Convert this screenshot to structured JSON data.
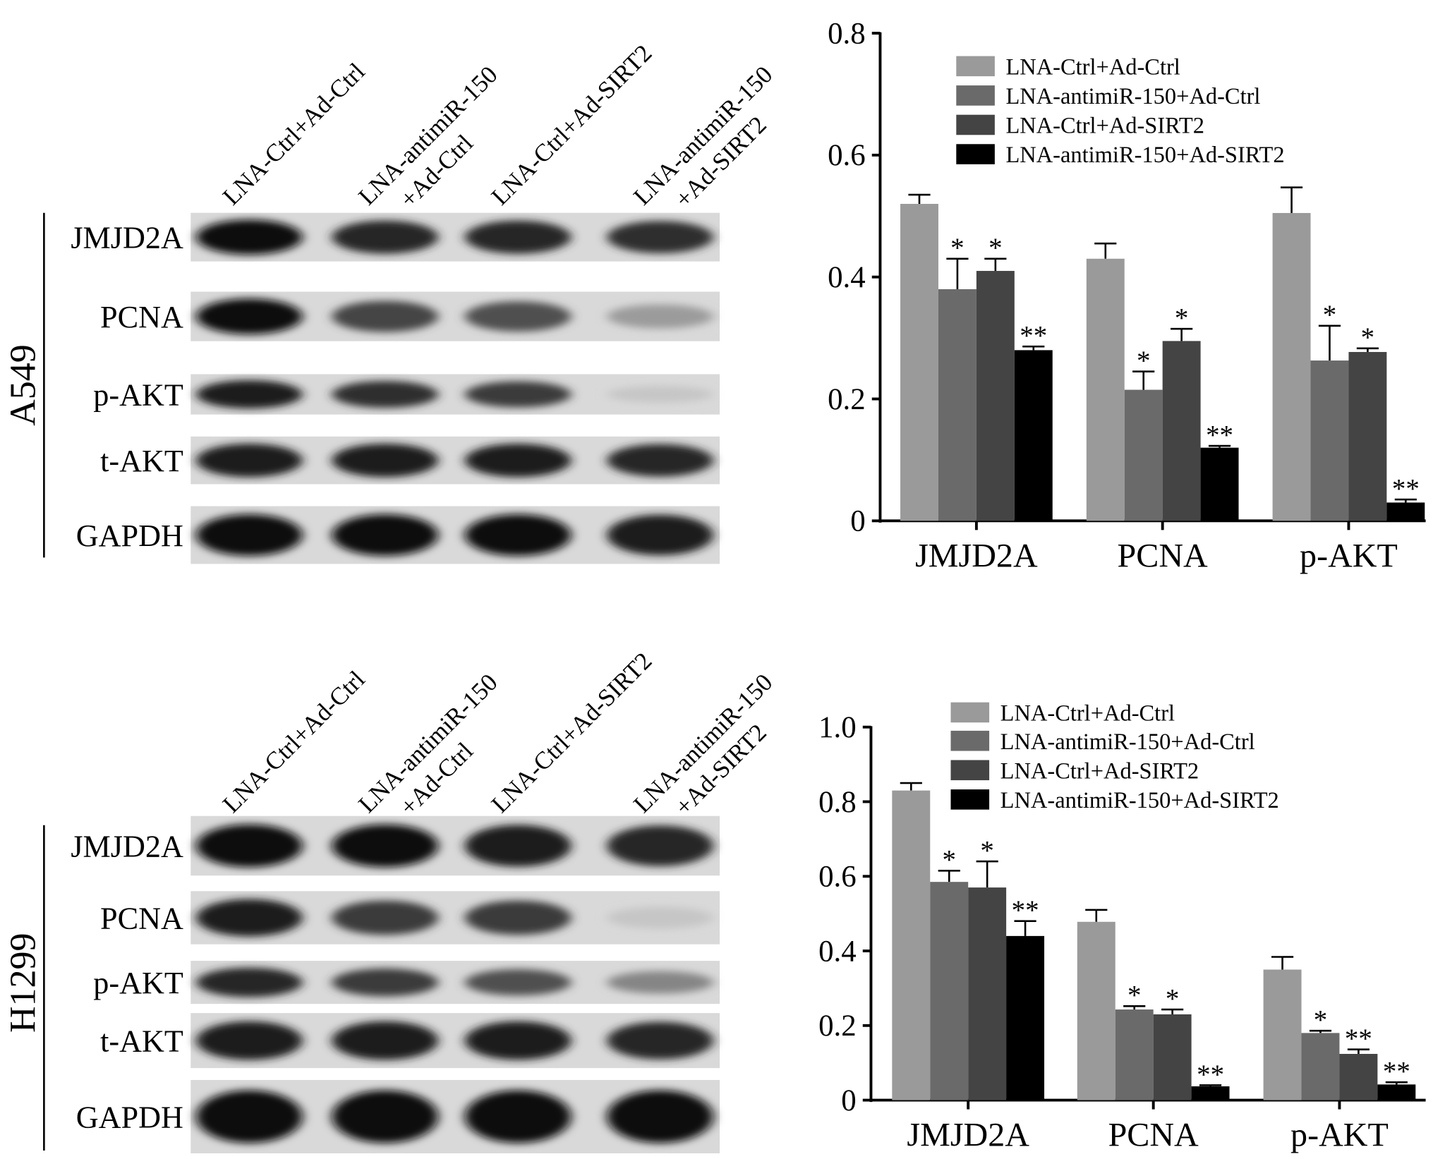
{
  "panels": [
    {
      "cell_line": "A549",
      "lanes": [
        [
          "LNA-Ctrl+Ad-Ctrl"
        ],
        [
          "LNA-antimiR-150",
          "+Ad-Ctrl"
        ],
        [
          "LNA-Ctrl+Ad-SIRT2"
        ],
        [
          "LNA-antimiR-150",
          "+Ad-SIRT2"
        ]
      ],
      "blot_rows": [
        {
          "label": "JMJD2A",
          "band_intensity": [
            1.0,
            0.9,
            0.9,
            0.85
          ]
        },
        {
          "label": "PCNA",
          "band_intensity": [
            1.0,
            0.75,
            0.7,
            0.35
          ]
        },
        {
          "label": "p-AKT",
          "band_intensity": [
            0.95,
            0.85,
            0.8,
            0.15
          ]
        },
        {
          "label": "t-AKT",
          "band_intensity": [
            0.95,
            0.95,
            0.95,
            0.9
          ]
        },
        {
          "label": "GAPDH",
          "band_intensity": [
            1.0,
            1.0,
            1.0,
            0.95
          ]
        }
      ]
    },
    {
      "cell_line": "H1299",
      "lanes": [
        [
          "LNA-Ctrl+Ad-Ctrl"
        ],
        [
          "LNA-antimiR-150",
          "+Ad-Ctrl"
        ],
        [
          "LNA-Ctrl+Ad-SIRT2"
        ],
        [
          "LNA-antimiR-150",
          "+Ad-SIRT2"
        ]
      ],
      "blot_rows": [
        {
          "label": "JMJD2A",
          "band_intensity": [
            1.0,
            1.0,
            0.95,
            0.9
          ]
        },
        {
          "label": "PCNA",
          "band_intensity": [
            0.95,
            0.8,
            0.8,
            0.15
          ]
        },
        {
          "label": "p-AKT",
          "band_intensity": [
            0.9,
            0.8,
            0.7,
            0.45
          ]
        },
        {
          "label": "t-AKT",
          "band_intensity": [
            0.95,
            0.95,
            0.95,
            0.9
          ]
        },
        {
          "label": "GAPDH",
          "band_intensity": [
            1.0,
            1.0,
            1.0,
            1.0
          ]
        }
      ]
    }
  ],
  "colors": [
    "#9a9a9a",
    "#6a6a6a",
    "#444444",
    "#000000"
  ],
  "chart_data": [
    {
      "type": "bar",
      "categories": [
        "JMJD2A",
        "PCNA",
        "p-AKT"
      ],
      "ylim": [
        0,
        0.8
      ],
      "yticks": [
        "0",
        "0.2",
        "0.4",
        "0.6",
        "0.8"
      ],
      "legend_placement": "top-right",
      "series": [
        {
          "name": "LNA-Ctrl+Ad-Ctrl",
          "values": [
            0.52,
            0.43,
            0.505
          ],
          "errors": [
            0.015,
            0.025,
            0.042
          ],
          "marks": [
            "",
            "",
            ""
          ]
        },
        {
          "name": "LNA-antimiR-150+Ad-Ctrl",
          "values": [
            0.38,
            0.215,
            0.263
          ],
          "errors": [
            0.05,
            0.03,
            0.057
          ],
          "marks": [
            "*",
            "*",
            "*"
          ]
        },
        {
          "name": "LNA-Ctrl+Ad-SIRT2",
          "values": [
            0.41,
            0.295,
            0.277
          ],
          "errors": [
            0.02,
            0.02,
            0.006
          ],
          "marks": [
            "*",
            "*",
            "*"
          ]
        },
        {
          "name": "LNA-antimiR-150+Ad-SIRT2",
          "values": [
            0.28,
            0.12,
            0.03
          ],
          "errors": [
            0.006,
            0.003,
            0.005
          ],
          "marks": [
            "**",
            "**",
            "**"
          ]
        }
      ]
    },
    {
      "type": "bar",
      "categories": [
        "JMJD2A",
        "PCNA",
        "p-AKT"
      ],
      "ylim": [
        0,
        1.0
      ],
      "yticks": [
        "0",
        "0.2",
        "0.4",
        "0.6",
        "0.8",
        "1.0"
      ],
      "legend_placement": "top-right",
      "series": [
        {
          "name": "LNA-Ctrl+Ad-Ctrl",
          "values": [
            0.83,
            0.478,
            0.35
          ],
          "errors": [
            0.02,
            0.032,
            0.034
          ],
          "marks": [
            "",
            "",
            ""
          ]
        },
        {
          "name": "LNA-antimiR-150+Ad-Ctrl",
          "values": [
            0.585,
            0.243,
            0.18
          ],
          "errors": [
            0.03,
            0.009,
            0.006
          ],
          "marks": [
            "*",
            "*",
            "*"
          ]
        },
        {
          "name": "LNA-Ctrl+Ad-SIRT2",
          "values": [
            0.57,
            0.23,
            0.124
          ],
          "errors": [
            0.07,
            0.013,
            0.012
          ],
          "marks": [
            "*",
            "*",
            "**"
          ]
        },
        {
          "name": "LNA-antimiR-150+Ad-SIRT2",
          "values": [
            0.44,
            0.037,
            0.042
          ],
          "errors": [
            0.04,
            0.003,
            0.006
          ],
          "marks": [
            "**",
            "**",
            "**"
          ]
        }
      ]
    }
  ]
}
